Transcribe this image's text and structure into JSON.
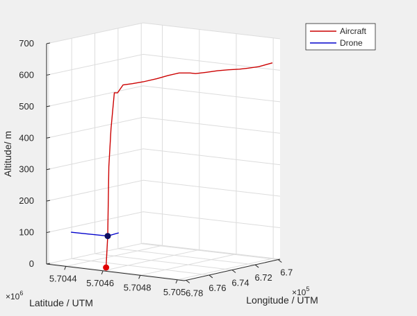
{
  "chart_data": {
    "type": "line",
    "projection": "3d",
    "title": "",
    "zlabel": "Altitude/ m",
    "xlabel": "Latitude / UTM",
    "ylabel": "Longitude / UTM",
    "x_exponent_label": "×10",
    "x_exponent_power": "6",
    "y_exponent_label": "×10",
    "y_exponent_power": "5",
    "zlim": [
      0,
      700
    ],
    "z_ticks": [
      "0",
      "100",
      "200",
      "300",
      "400",
      "500",
      "600",
      "700"
    ],
    "x_ticks": [
      "5.7044",
      "5.7046",
      "5.7048",
      "5.705"
    ],
    "y_ticks": [
      "6.7",
      "6.72",
      "6.74",
      "6.76",
      "6.78"
    ],
    "grid": true,
    "legend_position": "top-right",
    "series": [
      {
        "name": "Aircraft",
        "color": "#cc0000",
        "marker_start": true,
        "points": [
          [
            -3,
            0
          ],
          [
            0,
            100
          ],
          [
            2,
            320
          ],
          [
            6,
            440
          ],
          [
            12,
            555
          ],
          [
            18,
            555
          ],
          [
            28,
            580
          ],
          [
            45,
            584
          ],
          [
            65,
            590
          ],
          [
            90,
            600
          ],
          [
            110,
            610
          ],
          [
            130,
            618
          ],
          [
            150,
            618
          ],
          [
            160,
            616
          ],
          [
            180,
            620
          ],
          [
            200,
            625
          ],
          [
            220,
            628
          ],
          [
            240,
            630
          ],
          [
            255,
            633
          ],
          [
            275,
            638
          ],
          [
            300,
            650
          ]
        ]
      },
      {
        "name": "Drone",
        "color": "#0000cc",
        "marker_start": true,
        "points": [
          [
            -67,
            112
          ],
          [
            0,
            100
          ],
          [
            20,
            110
          ]
        ]
      }
    ]
  }
}
